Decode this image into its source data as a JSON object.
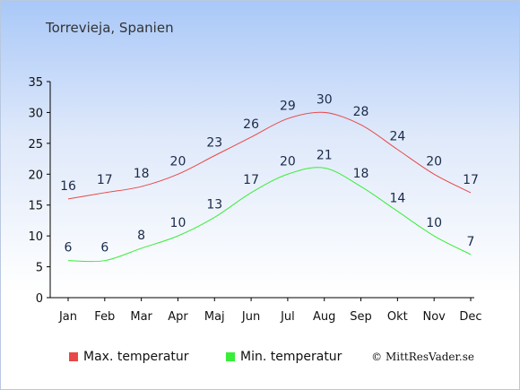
{
  "title": "Torrevieja, Spanien",
  "credit": "© MittResVader.se",
  "colors": {
    "max": "#e84848",
    "min": "#38ee38"
  },
  "chart_data": {
    "type": "line",
    "categories": [
      "Jan",
      "Feb",
      "Mar",
      "Apr",
      "Maj",
      "Jun",
      "Jul",
      "Aug",
      "Sep",
      "Okt",
      "Nov",
      "Dec"
    ],
    "series": [
      {
        "name": "Max. temperatur",
        "values": [
          16,
          17,
          18,
          20,
          23,
          26,
          29,
          30,
          28,
          24,
          20,
          17
        ]
      },
      {
        "name": "Min. temperatur",
        "values": [
          6,
          6,
          8,
          10,
          13,
          17,
          20,
          21,
          18,
          14,
          10,
          7
        ]
      }
    ],
    "ylim": [
      0,
      35
    ],
    "yticks": [
      0,
      5,
      10,
      15,
      20,
      25,
      30,
      35
    ],
    "grid": false,
    "legend": "bottom"
  }
}
